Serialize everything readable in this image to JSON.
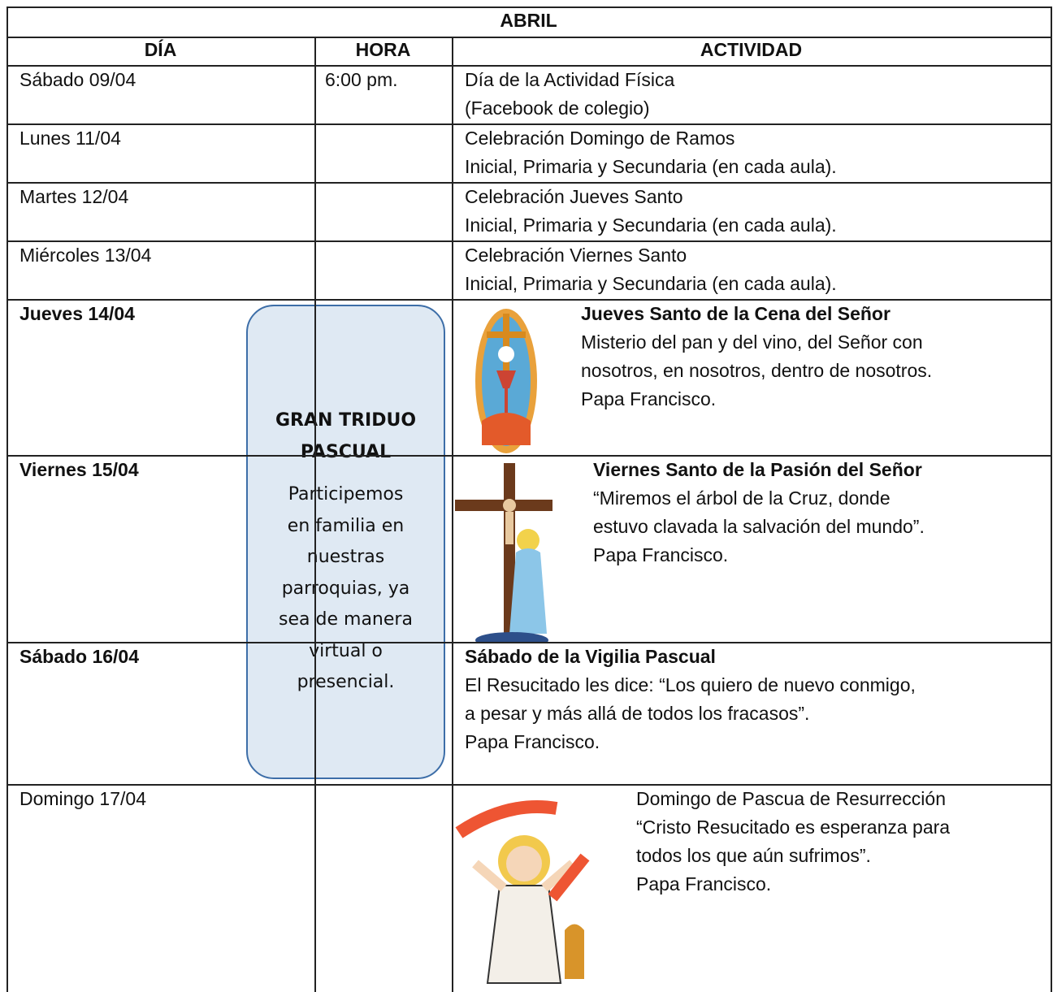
{
  "table": {
    "title": "ABRIL",
    "headers": [
      "DÍA",
      "HORA",
      "ACTIVIDAD"
    ],
    "rows": [
      {
        "day": "Sábado 09/04",
        "time": "6:00 pm.",
        "lines": [
          "Día de la Actividad Física",
          "(Facebook de colegio)"
        ]
      },
      {
        "day": "Lunes 11/04",
        "lines": [
          "Celebración Domingo de Ramos",
          "Inicial, Primaria y Secundaria (en cada aula)."
        ]
      },
      {
        "day": "Martes 12/04",
        "lines": [
          "Celebración Jueves Santo",
          "Inicial, Primaria y Secundaria (en cada aula)."
        ]
      },
      {
        "day": "Miércoles 13/04",
        "lines": [
          "Celebración Viernes Santo",
          "Inicial, Primaria y Secundaria (en cada aula)."
        ]
      },
      {
        "day": "Jueves 14/04",
        "bold": true,
        "lines": [
          "Jueves Santo de la Cena del Señor",
          "Misterio del pan y del vino, del Señor con",
          "nosotros, en nosotros, dentro de nosotros.",
          "Papa Francisco."
        ]
      },
      {
        "day": "Viernes 15/04",
        "bold": true,
        "lines": [
          "Viernes Santo de la Pasión del Señor",
          "“Miremos el árbol de la Cruz, donde",
          "estuvo clavada la salvación del mundo”.",
          "Papa Francisco."
        ]
      },
      {
        "day": "Sábado 16/04",
        "bold": true,
        "lines": [
          "Sábado de la Vigilia Pascual",
          "El Resucitado les dice: “Los quiero de nuevo conmigo,",
          "a pesar y más allá de todos los fracasos”.",
          "Papa Francisco."
        ]
      },
      {
        "day": "Domingo 17/04",
        "lines": [
          "Domingo de Pascua de Resurrección",
          "“Cristo Resucitado es esperanza para",
          "todos los que aún sufrimos”.",
          "Papa Francisco."
        ]
      }
    ]
  },
  "callout": {
    "title": [
      "GRAN TRIDUO",
      "PASCUAL"
    ],
    "body": [
      "Participemos",
      "en familia en",
      "nuestras",
      "parroquias, ya",
      "sea de manera",
      "virtual o",
      "presencial."
    ]
  }
}
